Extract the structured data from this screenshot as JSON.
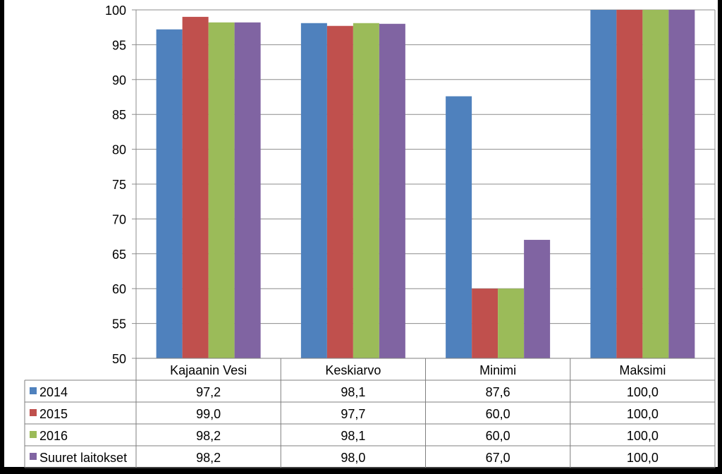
{
  "chart_data": {
    "type": "bar",
    "title": "",
    "xlabel": "",
    "ylabel": "",
    "ylim": [
      50,
      100
    ],
    "yticks": [
      "50",
      "55",
      "60",
      "65",
      "70",
      "75",
      "80",
      "85",
      "90",
      "95",
      "100"
    ],
    "grid": true,
    "legend_placement": "data-table",
    "categories": [
      "Kajaanin Vesi",
      "Keskiarvo",
      "Minimi",
      "Maksimi"
    ],
    "series": [
      {
        "name": "2014",
        "color": "#4F81BD",
        "values": [
          97.2,
          98.1,
          87.6,
          100.0
        ],
        "labels": [
          "97,2",
          "98,1",
          "87,6",
          "100,0"
        ]
      },
      {
        "name": "2015",
        "color": "#C0504D",
        "values": [
          99.0,
          97.7,
          60.0,
          100.0
        ],
        "labels": [
          "99,0",
          "97,7",
          "60,0",
          "100,0"
        ]
      },
      {
        "name": "2016",
        "color": "#9BBB59",
        "values": [
          98.2,
          98.1,
          60.0,
          100.0
        ],
        "labels": [
          "98,2",
          "98,1",
          "60,0",
          "100,0"
        ]
      },
      {
        "name": "Suuret laitokset",
        "color": "#8064A2",
        "values": [
          98.2,
          98.0,
          67.0,
          100.0
        ],
        "labels": [
          "98,2",
          "98,0",
          "67,0",
          "100,0"
        ]
      }
    ]
  }
}
